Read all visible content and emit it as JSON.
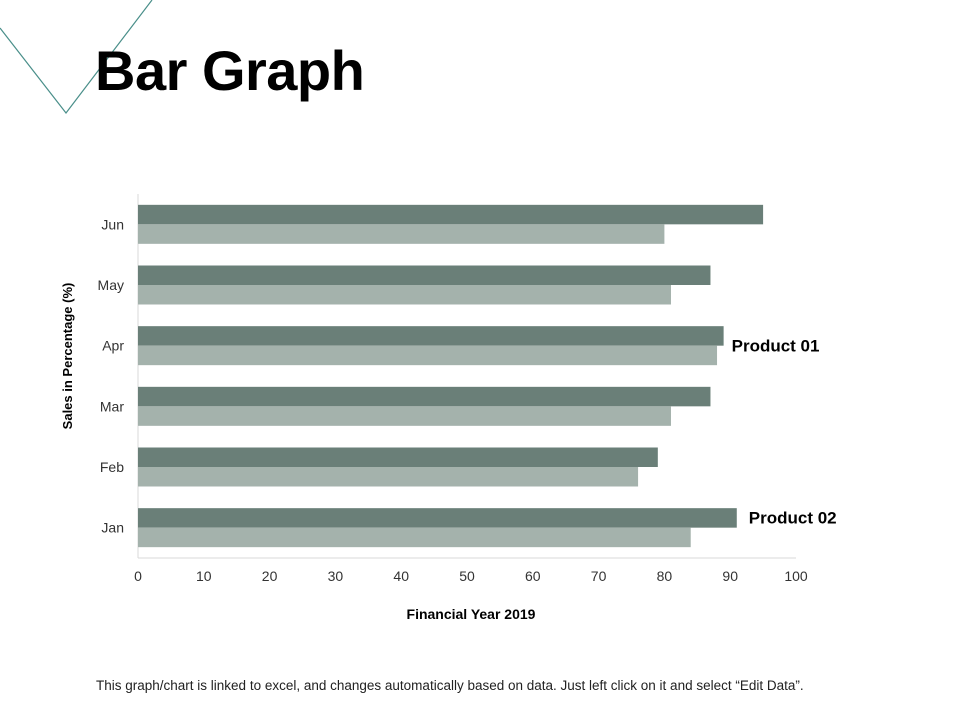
{
  "title": "Bar Graph",
  "footnote": "This graph/chart is linked to excel, and changes automatically based on data. Just left click on it and select “Edit Data”.",
  "colors": {
    "product01": "#6a7f78",
    "product02": "#a4b2ac",
    "axis": "#d9d9d9",
    "decor_line": "#4a8f8a"
  },
  "chart_data": {
    "type": "bar",
    "orientation": "horizontal",
    "categories": [
      "Jan",
      "Feb",
      "Mar",
      "Apr",
      "May",
      "Jun"
    ],
    "series": [
      {
        "name": "Product 01",
        "values": [
          91,
          79,
          87,
          89,
          87,
          95
        ]
      },
      {
        "name": "Product 02",
        "values": [
          84,
          76,
          81,
          88,
          81,
          80
        ]
      }
    ],
    "xlabel": "Financial Year 2019",
    "ylabel": "Sales in Percentage (%)",
    "xlim": [
      0,
      100
    ],
    "xticks": [
      0,
      10,
      20,
      30,
      40,
      50,
      60,
      70,
      80,
      90,
      100
    ],
    "grid": false,
    "legend": "none"
  }
}
